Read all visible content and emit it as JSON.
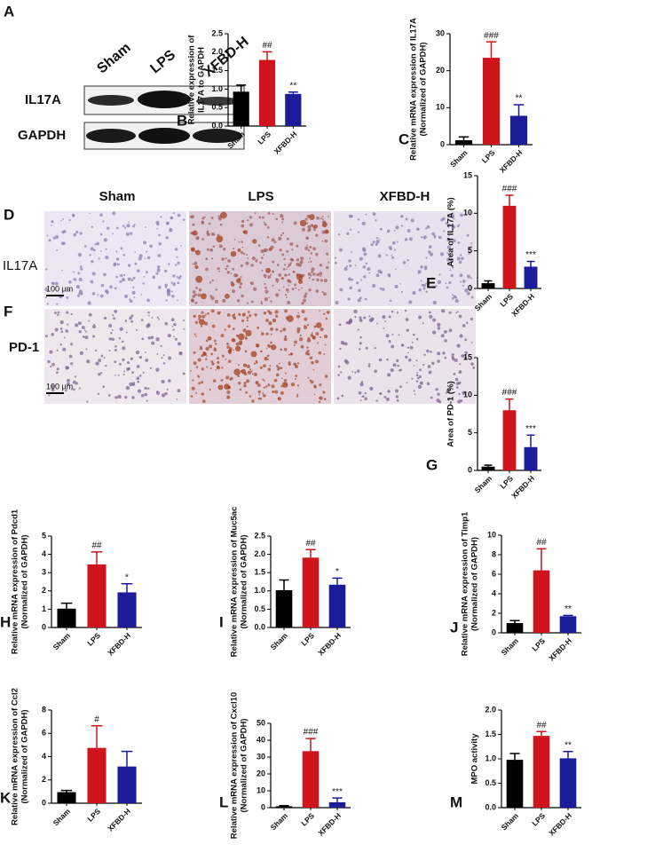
{
  "blot": {
    "panel": "A",
    "lanes": [
      "Sham",
      "LPS",
      "XFBD-H"
    ],
    "rows": [
      "IL17A",
      "GAPDH"
    ]
  },
  "histology": {
    "panels": [
      "D",
      "F"
    ],
    "columns": [
      "Sham",
      "LPS",
      "XFBD-H"
    ],
    "rows": [
      "IL17A",
      "PD-1"
    ],
    "scale_bar": "100 µm"
  },
  "chart_data": [
    {
      "type": "bar",
      "panel": "B",
      "ylabel": [
        "Relative expression of",
        "IL17A to GAPDH"
      ],
      "categories": [
        "Sham",
        "LPS",
        "XFBD-H"
      ],
      "values": [
        0.93,
        1.79,
        0.87
      ],
      "errors": [
        0.18,
        0.22,
        0.05
      ],
      "annotations": [
        null,
        "##",
        "**"
      ],
      "colors": [
        "#000000",
        "#d0141b",
        "#1c1c9a"
      ],
      "ylim": [
        0,
        2.5
      ],
      "yticks": [
        {
          "value": 0,
          "label": "0.0"
        },
        0.5,
        {
          "value": 1,
          "label": "1.0"
        },
        1.5,
        {
          "value": 2,
          "label": "2.0"
        },
        2.5
      ]
    },
    {
      "type": "bar",
      "panel": "C",
      "ylabel": [
        "Relative mRNA expression of IL17A",
        "(Normalized of GAPDH)"
      ],
      "categories": [
        "Sham",
        "LPS",
        "XFBD-H"
      ],
      "values": [
        1.2,
        23.5,
        7.8
      ],
      "errors": [
        0.9,
        4.3,
        3.0
      ],
      "annotations": [
        null,
        "###",
        "**"
      ],
      "colors": [
        "#000000",
        "#d0141b",
        "#1c1c9a"
      ],
      "ylim": [
        0,
        30
      ],
      "yticks": [
        0,
        10,
        20,
        30
      ]
    },
    {
      "type": "bar",
      "panel": "E",
      "ylabel": [
        "Area of IL17A (%)"
      ],
      "categories": [
        "Sham",
        "LPS",
        "XFBD-H"
      ],
      "values": [
        0.7,
        11.0,
        2.9
      ],
      "errors": [
        0.3,
        1.4,
        0.7
      ],
      "annotations": [
        null,
        "###",
        "***"
      ],
      "colors": [
        "#000000",
        "#d0141b",
        "#1c1c9a"
      ],
      "ylim": [
        0,
        15
      ],
      "yticks": [
        0,
        5,
        10,
        15
      ]
    },
    {
      "type": "bar",
      "panel": "G",
      "ylabel": [
        "Area of PD-1 (%)"
      ],
      "categories": [
        "Sham",
        "LPS",
        "XFBD-H"
      ],
      "values": [
        0.5,
        8.0,
        3.1
      ],
      "errors": [
        0.2,
        1.5,
        1.6
      ],
      "annotations": [
        null,
        "###",
        "***"
      ],
      "colors": [
        "#000000",
        "#d0141b",
        "#1c1c9a"
      ],
      "ylim": [
        0,
        15
      ],
      "yticks": [
        0,
        5,
        10,
        15
      ]
    },
    {
      "type": "bar",
      "panel": "H",
      "ylabel": [
        "Relative mRNA expression of Pdcd1",
        "(Normalized of GAPDH)"
      ],
      "categories": [
        "Sham",
        "LPS",
        "XFBD-H"
      ],
      "values": [
        1.03,
        3.45,
        1.92
      ],
      "errors": [
        0.3,
        0.68,
        0.47
      ],
      "annotations": [
        null,
        "##",
        "*"
      ],
      "colors": [
        "#000000",
        "#d0141b",
        "#1c1c9a"
      ],
      "ylim": [
        0,
        5
      ],
      "yticks": [
        0,
        1,
        2,
        3,
        4,
        5
      ]
    },
    {
      "type": "bar",
      "panel": "I",
      "ylabel": [
        "Relative mRNA expression of Muc5ac",
        "(Normalized of GAPDH)"
      ],
      "categories": [
        "Sham",
        "LPS",
        "XFBD-H"
      ],
      "values": [
        1.02,
        1.91,
        1.17
      ],
      "errors": [
        0.28,
        0.22,
        0.18
      ],
      "annotations": [
        null,
        "##",
        "*"
      ],
      "colors": [
        "#000000",
        "#d0141b",
        "#1c1c9a"
      ],
      "ylim": [
        0,
        2.5
      ],
      "yticks": [
        {
          "value": 0,
          "label": "0.0"
        },
        0.5,
        {
          "value": 1,
          "label": "1.0"
        },
        1.5,
        {
          "value": 2,
          "label": "2.0"
        },
        2.5
      ]
    },
    {
      "type": "bar",
      "panel": "J",
      "ylabel": [
        "Relative mRNA expression of Timp1",
        "(Normalized of GAPDH)"
      ],
      "categories": [
        "Sham",
        "LPS",
        "XFBD-H"
      ],
      "values": [
        1.0,
        6.4,
        1.7
      ],
      "errors": [
        0.25,
        2.2,
        0.08
      ],
      "annotations": [
        null,
        "##",
        "**"
      ],
      "colors": [
        "#000000",
        "#d0141b",
        "#1c1c9a"
      ],
      "ylim": [
        0,
        10
      ],
      "yticks": [
        0,
        2,
        4,
        6,
        8,
        10
      ]
    },
    {
      "type": "bar",
      "panel": "K",
      "ylabel": [
        "Relative mRNA expression of Ccl2",
        "(Normalized of GAPDH)"
      ],
      "categories": [
        "Sham",
        "LPS",
        "XFBD-H"
      ],
      "values": [
        0.95,
        4.75,
        3.15
      ],
      "errors": [
        0.15,
        1.9,
        1.3
      ],
      "annotations": [
        null,
        "#",
        null
      ],
      "colors": [
        "#000000",
        "#d0141b",
        "#1c1c9a"
      ],
      "ylim": [
        0,
        8
      ],
      "yticks": [
        0,
        2,
        4,
        6,
        8
      ]
    },
    {
      "type": "bar",
      "panel": "L",
      "ylabel": [
        "Relative mRNA expression of Cxcl10",
        "(Normalized of GAPDH)"
      ],
      "categories": [
        "Sham",
        "LPS",
        "XFBD-H"
      ],
      "values": [
        0.8,
        33.5,
        3.2
      ],
      "errors": [
        0.4,
        7.5,
        2.5
      ],
      "annotations": [
        null,
        "###",
        "***"
      ],
      "colors": [
        "#000000",
        "#d0141b",
        "#1c1c9a"
      ],
      "ylim": [
        0,
        50
      ],
      "yticks": [
        0,
        10,
        20,
        30,
        40,
        50
      ]
    },
    {
      "type": "bar",
      "panel": "M",
      "ylabel": [
        "MPO activity"
      ],
      "categories": [
        "Sham",
        "LPS",
        "XFBD-H"
      ],
      "values": [
        0.98,
        1.47,
        1.01
      ],
      "errors": [
        0.13,
        0.09,
        0.14
      ],
      "annotations": [
        null,
        "##",
        "**"
      ],
      "colors": [
        "#000000",
        "#d0141b",
        "#1c1c9a"
      ],
      "ylim": [
        0,
        2
      ],
      "yticks": [
        {
          "value": 0,
          "label": "0.0"
        },
        0.5,
        {
          "value": 1,
          "label": "1.0"
        },
        1.5,
        {
          "value": 2,
          "label": "2.0"
        }
      ]
    }
  ]
}
